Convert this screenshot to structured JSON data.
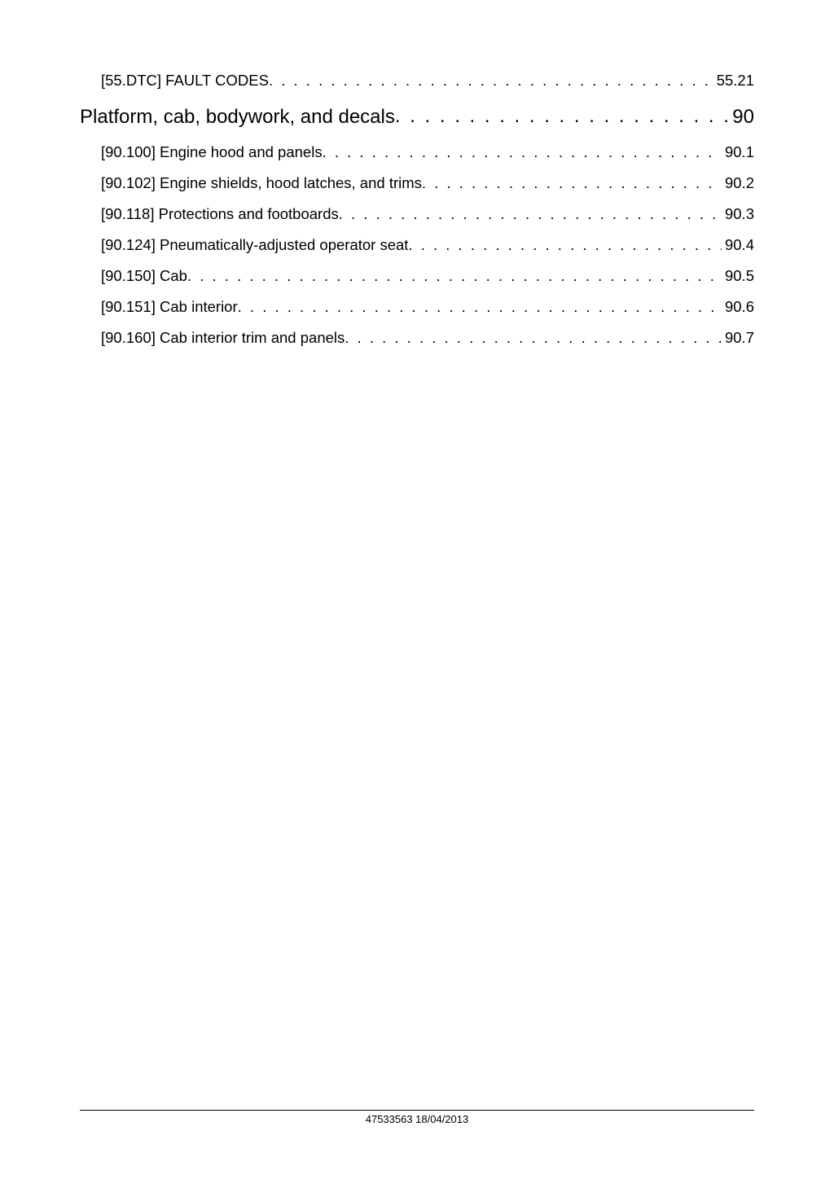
{
  "toc": [
    {
      "level": "sub",
      "title": "[55.DTC] FAULT CODES",
      "page": "55.21",
      "extra_gap": true
    },
    {
      "level": "section",
      "title": "Platform, cab, bodywork, and decals",
      "page": "90"
    },
    {
      "level": "sub",
      "title": "[90.100] Engine hood and panels ",
      "page": " 90.1"
    },
    {
      "level": "sub",
      "title": "[90.102] Engine shields, hood latches, and trims ",
      "page": " 90.2"
    },
    {
      "level": "sub",
      "title": "[90.118] Protections and footboards",
      "page": " 90.3"
    },
    {
      "level": "sub",
      "title": "[90.124] Pneumatically-adjusted operator seat",
      "page": " 90.4"
    },
    {
      "level": "sub",
      "title": "[90.150] Cab",
      "page": " 90.5"
    },
    {
      "level": "sub",
      "title": "[90.151] Cab interior",
      "page": " 90.6"
    },
    {
      "level": "sub",
      "title": "[90.160] Cab interior trim and panels",
      "page": " 90.7"
    }
  ],
  "footer": "47533563 18/04/2013",
  "dots_fill": ". . . . . . . . . . . . . . . . . . . . . . . . . . . . . . . . . . . . . . . . . . . . . . . . . . . . . . . . . . . . . . . . . . . . . . . . . . . . . . . . . . . . . . . . . . . . . . . . . . . . . . . . . . . . . . . . . . . . . . . . . . . . . . . . . . . . . . . . . . . . . . . . . . . . . . . . . . . . . . . . . . . . . . . . . . . . . . . . . . . ."
}
